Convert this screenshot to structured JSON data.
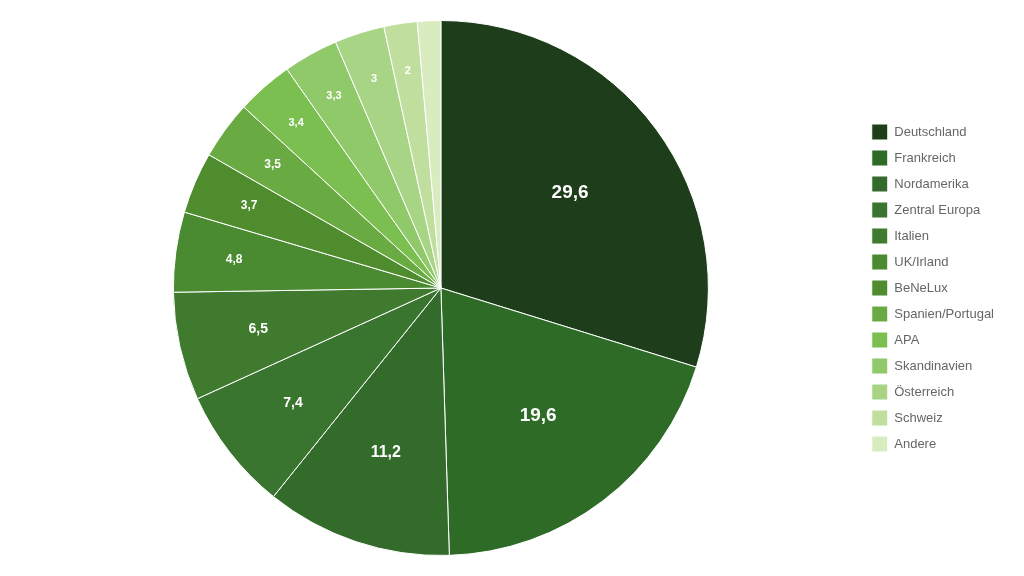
{
  "chart_data": {
    "type": "pie",
    "categories": [
      "Deutschland",
      "Frankreich",
      "Nordamerika",
      "Zentral Europa",
      "Italien",
      "UK/Irland",
      "BeNeLux",
      "Spanien/Portugal",
      "APA",
      "Skandinavien",
      "Österreich",
      "Schweiz",
      "Andere"
    ],
    "values": [
      29.6,
      19.6,
      11.2,
      7.4,
      6.5,
      4.8,
      3.7,
      3.5,
      3.4,
      3.3,
      3.0,
      2.0,
      1.4
    ],
    "value_labels": [
      "29,6",
      "19,6",
      "11,2",
      "7,4",
      "6,5",
      "4,8",
      "3,7",
      "3,5",
      "3,4",
      "3,3",
      "3",
      "2",
      null
    ],
    "colors": [
      "#1e3d1a",
      "#2d6b27",
      "#336b2a",
      "#3a7530",
      "#3f7a2e",
      "#4a8a30",
      "#4e8c2d",
      "#6aaa42",
      "#7bbf50",
      "#90c96a",
      "#a8d485",
      "#c0df9f",
      "#d8ecc0"
    ],
    "legend": "right",
    "data_labels": true
  }
}
